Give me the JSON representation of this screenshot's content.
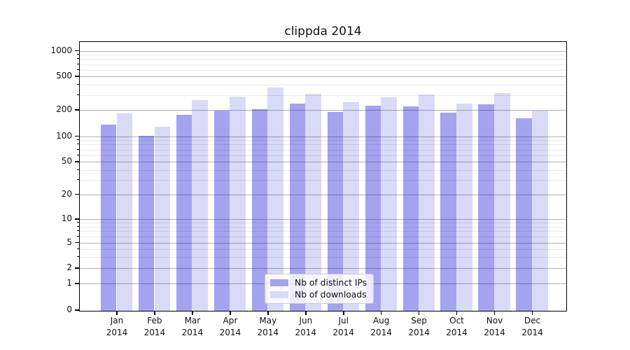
{
  "title": "clippda 2014",
  "chart_data": {
    "type": "bar",
    "title": "clippda 2014",
    "categories": [
      "Jan 2014",
      "Feb 2014",
      "Mar 2014",
      "Apr 2014",
      "May 2014",
      "Jun 2014",
      "Jul 2014",
      "Aug 2014",
      "Sep 2014",
      "Oct 2014",
      "Nov 2014",
      "Dec 2014"
    ],
    "series": [
      {
        "name": "Nb of distinct IPs",
        "color": "#a3a3f0",
        "values": [
          138,
          104,
          179,
          200,
          209,
          242,
          193,
          230,
          226,
          190,
          241,
          163
        ]
      },
      {
        "name": "Nb of downloads",
        "color": "#d9d9f8",
        "values": [
          187,
          131,
          268,
          297,
          380,
          318,
          253,
          287,
          310,
          243,
          325,
          203
        ]
      }
    ],
    "yscale": "symlog",
    "yticks": [
      0,
      1,
      2,
      5,
      10,
      20,
      50,
      100,
      200,
      500,
      1000
    ],
    "minor_gridlines": [
      3,
      4,
      6,
      7,
      8,
      9,
      30,
      40,
      60,
      70,
      80,
      90,
      300,
      400,
      600,
      700,
      800,
      900
    ],
    "ylim": [
      0,
      1265
    ],
    "grid": true,
    "legend_position": "lower center"
  },
  "legend": {
    "items": [
      {
        "label": "Nb of distinct IPs",
        "color": "#a3a3f0"
      },
      {
        "label": "Nb of downloads",
        "color": "#d9d9f8"
      }
    ]
  }
}
